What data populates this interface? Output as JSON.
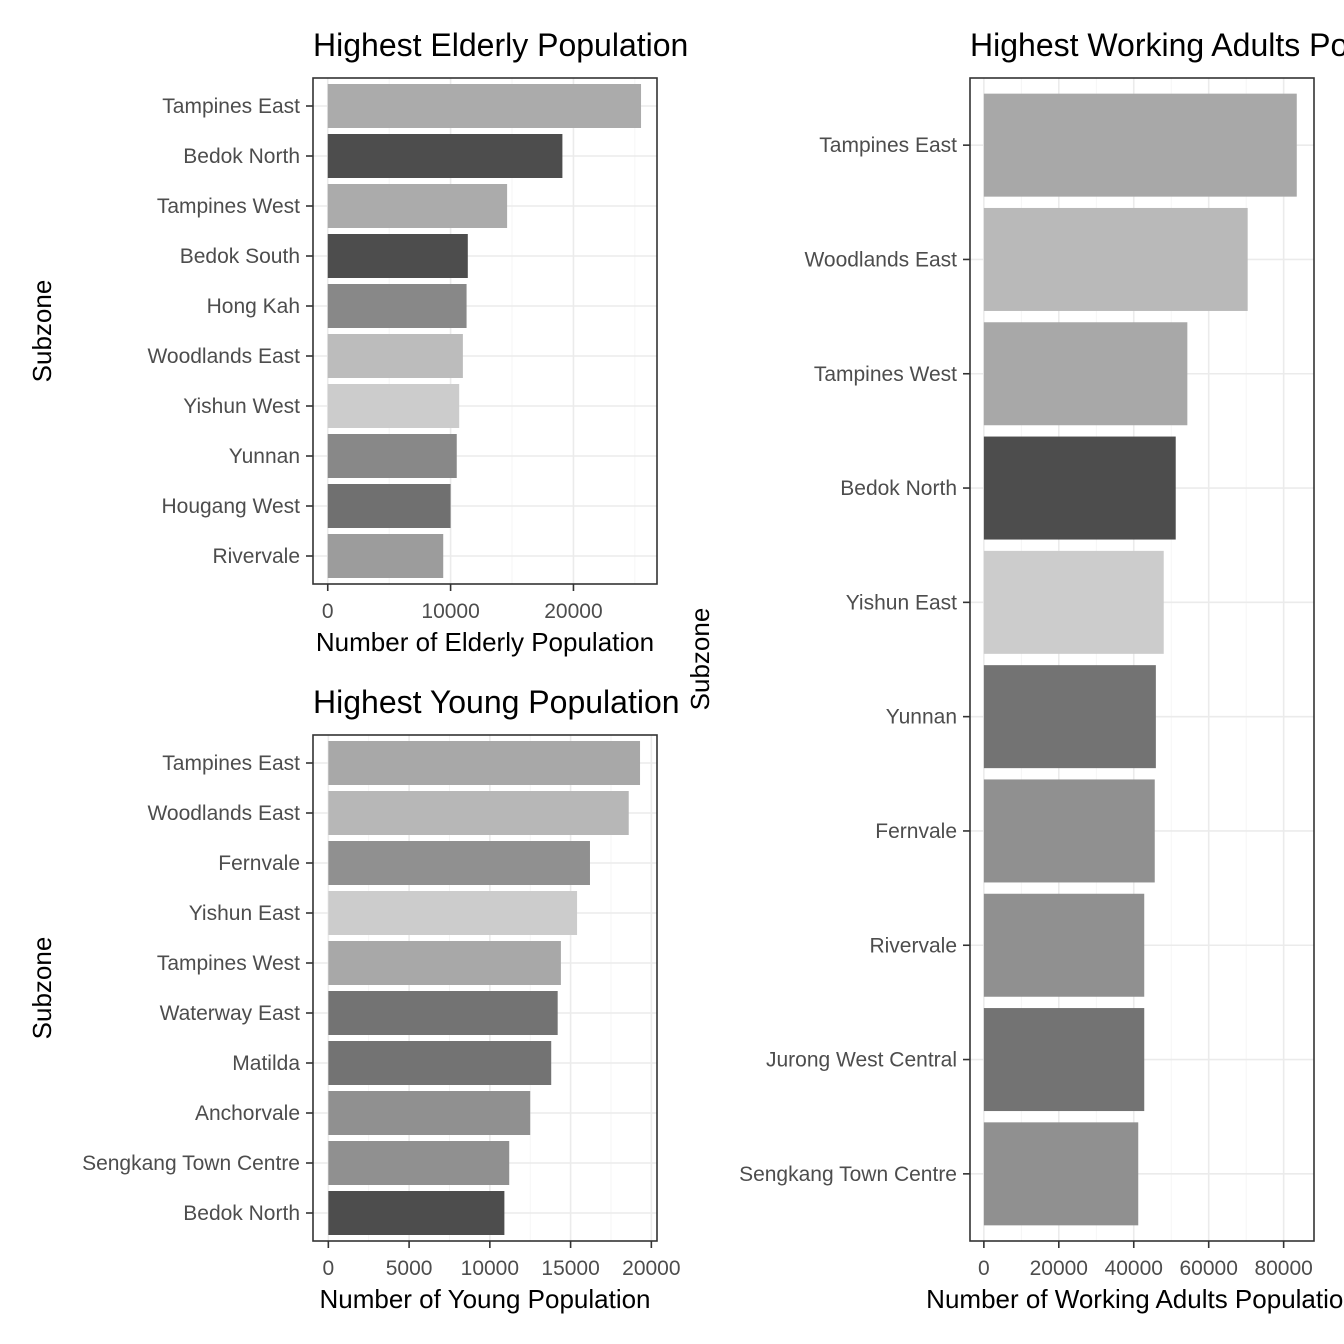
{
  "chart_data": [
    {
      "id": "elderly",
      "type": "bar",
      "orientation": "horizontal",
      "title": "Highest Elderly Population",
      "xlabel": "Number of Elderly Population",
      "ylabel": "Subzone",
      "xlim": [
        -1200,
        26800
      ],
      "xticks": [
        0,
        10000,
        20000
      ],
      "xtick_labels": [
        "0",
        "10000",
        "20000"
      ],
      "grid": true,
      "categories": [
        "Tampines East",
        "Bedok North",
        "Tampines West",
        "Bedok South",
        "Hong Kah",
        "Woodlands East",
        "Yishun West",
        "Yunnan",
        "Hougang West",
        "Rivervale"
      ],
      "values": [
        25500,
        19100,
        14600,
        11400,
        11300,
        11000,
        10700,
        10500,
        10000,
        9400
      ],
      "colors": [
        "#ababab",
        "#4d4d4d",
        "#ababab",
        "#4d4d4d",
        "#888888",
        "#bcbcbc",
        "#cccccc",
        "#888888",
        "#707070",
        "#9c9c9c"
      ]
    },
    {
      "id": "young",
      "type": "bar",
      "orientation": "horizontal",
      "title": "Highest Young Population",
      "xlabel": "Number of Young Population",
      "ylabel": "Subzone",
      "xlim": [
        -950,
        20350
      ],
      "xticks": [
        0,
        5000,
        10000,
        15000,
        20000
      ],
      "xtick_labels": [
        "0",
        "5000",
        "10000",
        "15000",
        "20000"
      ],
      "grid": true,
      "categories": [
        "Tampines East",
        "Woodlands East",
        "Fernvale",
        "Yishun East",
        "Tampines West",
        "Waterway East",
        "Matilda",
        "Anchorvale",
        "Sengkang Town Centre",
        "Bedok North"
      ],
      "values": [
        19300,
        18600,
        16200,
        15400,
        14400,
        14200,
        13800,
        12500,
        11200,
        10900
      ],
      "colors": [
        "#a8a8a8",
        "#b7b7b7",
        "#909090",
        "#cccccc",
        "#a8a8a8",
        "#737373",
        "#737373",
        "#909090",
        "#909090",
        "#4d4d4d"
      ]
    },
    {
      "id": "working",
      "type": "bar",
      "orientation": "horizontal",
      "title": "Highest Working Adults Population",
      "xlabel": "Number of Working Adults Population",
      "ylabel": "Subzone",
      "xlim": [
        -3700,
        88100
      ],
      "xticks": [
        0,
        20000,
        40000,
        60000,
        80000
      ],
      "xtick_labels": [
        "0",
        "20000",
        "40000",
        "60000",
        "80000"
      ],
      "grid": true,
      "categories": [
        "Tampines East",
        "Woodlands East",
        "Tampines West",
        "Bedok North",
        "Yishun East",
        "Yunnan",
        "Fernvale",
        "Rivervale",
        "Jurong West Central",
        "Sengkang Town Centre"
      ],
      "values": [
        83500,
        70400,
        54300,
        51200,
        48000,
        45900,
        45600,
        42800,
        42800,
        41200
      ],
      "colors": [
        "#a8a8a8",
        "#b9b9b9",
        "#a8a8a8",
        "#4d4d4d",
        "#cccccc",
        "#737373",
        "#909090",
        "#909090",
        "#737373",
        "#909090"
      ]
    }
  ]
}
